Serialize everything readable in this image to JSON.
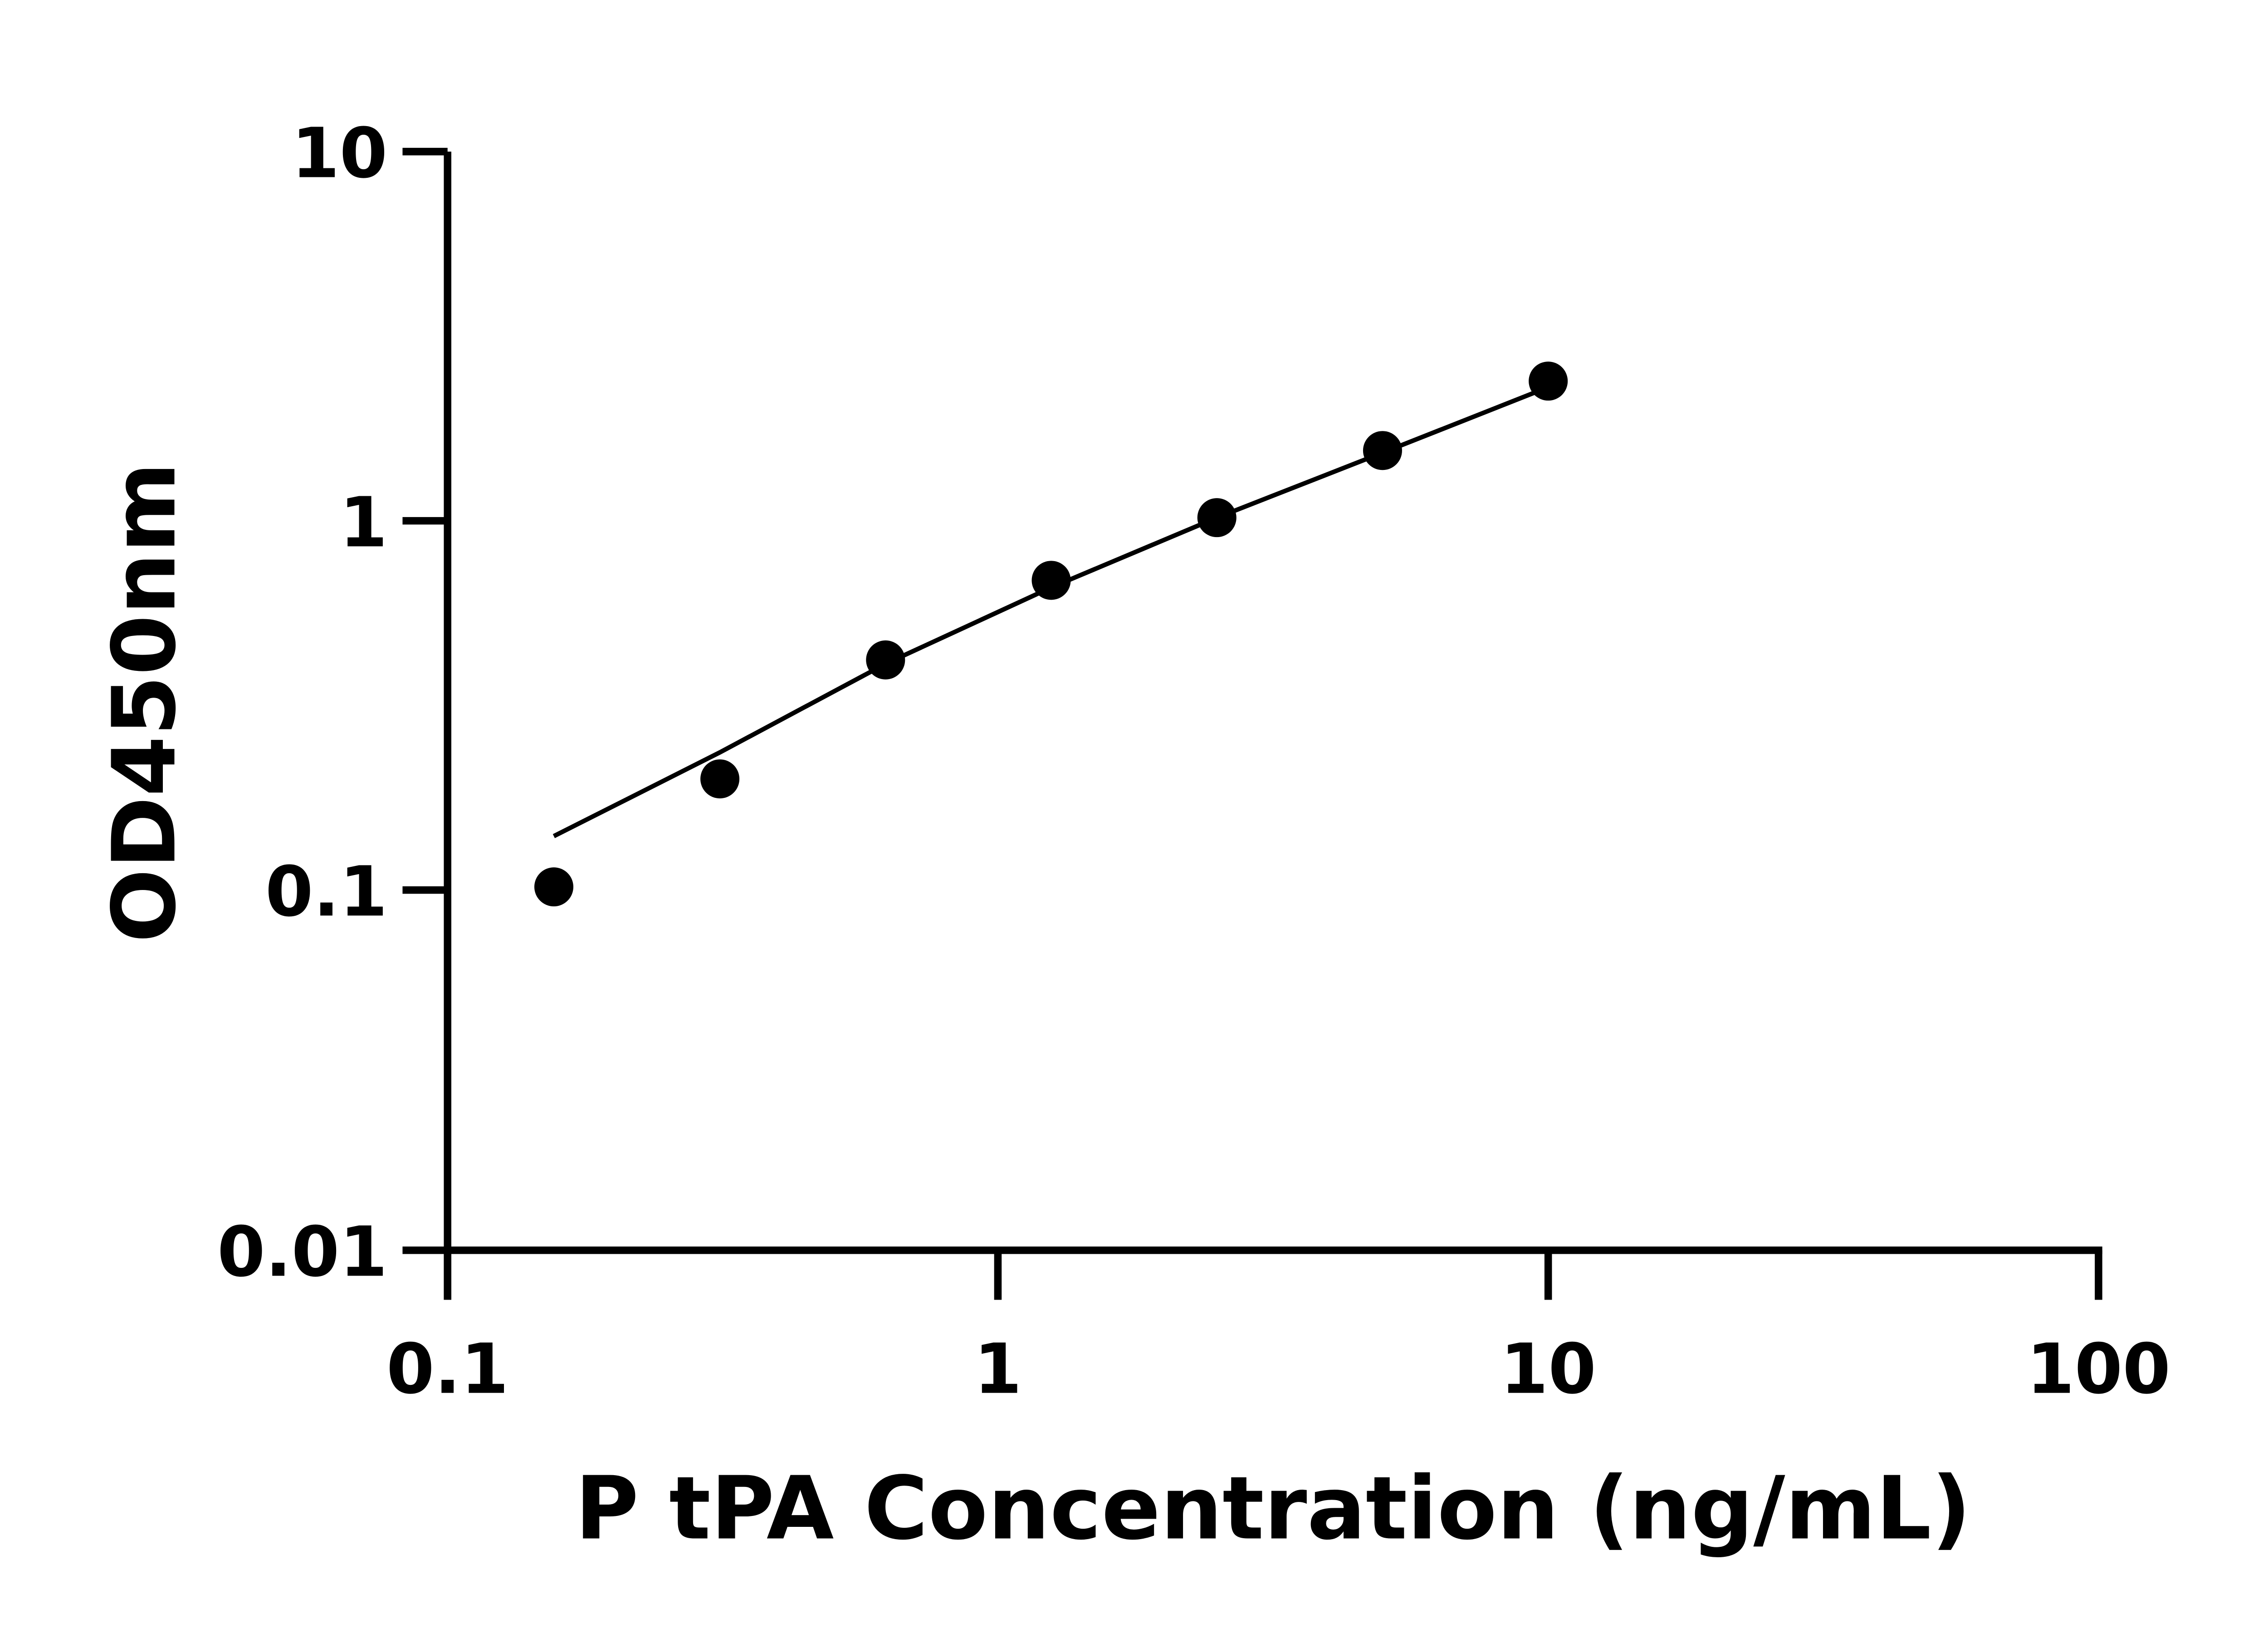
{
  "chart_data": {
    "type": "scatter",
    "xlabel": "P tPA Concentration (ng/mL)",
    "ylabel": "OD450nm",
    "x_scale": "log",
    "y_scale": "log",
    "xlim": [
      0.1,
      100
    ],
    "ylim": [
      0.01,
      10
    ],
    "x_ticks": [
      "0.1",
      "1",
      "10",
      "100"
    ],
    "y_ticks": [
      "10",
      "1",
      "0.1",
      "0.01"
    ],
    "grid": false,
    "colors": {
      "points": "#000000",
      "line": "#000000",
      "axes": "#000000"
    },
    "series": [
      {
        "x": [
          0.156,
          0.3125,
          0.625,
          1.25,
          2.5,
          5,
          10
        ],
        "y": [
          0.102,
          0.2,
          0.42,
          0.69,
          1.02,
          1.55,
          2.39
        ]
      }
    ],
    "fit_line": {
      "x": [
        0.156,
        0.3125,
        0.625,
        1.25,
        2.5,
        5,
        10
      ],
      "y": [
        0.14,
        0.236,
        0.41,
        0.66,
        1.02,
        1.53,
        2.3
      ]
    }
  }
}
